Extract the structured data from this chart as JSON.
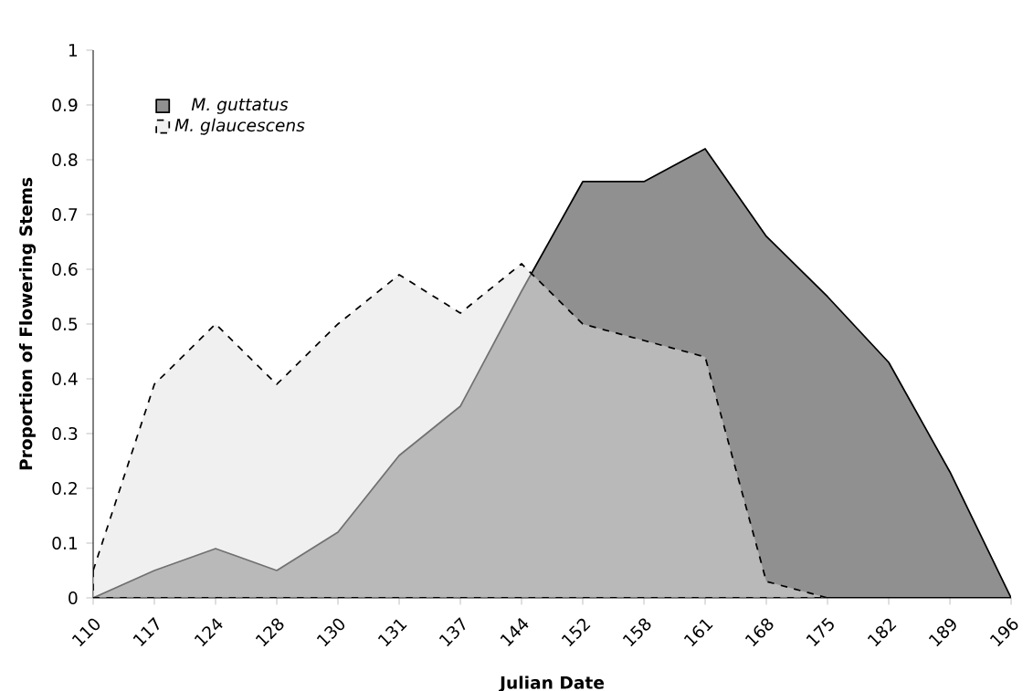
{
  "chart_data": {
    "type": "area",
    "xlabel": "Julian Date",
    "ylabel": "Proportion of Flowering Stems",
    "categories": [
      "110",
      "117",
      "124",
      "128",
      "130",
      "131",
      "137",
      "144",
      "152",
      "158",
      "161",
      "168",
      "175",
      "182",
      "189",
      "196"
    ],
    "series": [
      {
        "name": "M. guttatus",
        "color": "#909090",
        "line_style": "solid",
        "values": [
          0,
          0.05,
          0.09,
          0.05,
          0.12,
          0.26,
          0.35,
          0.56,
          0.76,
          0.76,
          0.82,
          0.66,
          0.55,
          0.43,
          0.23,
          0
        ]
      },
      {
        "name": "M. glaucescens",
        "color": "#f0f0f0",
        "line_style": "dashed",
        "values": [
          0.05,
          0.39,
          0.5,
          0.39,
          0.5,
          0.59,
          0.52,
          0.61,
          0.5,
          0.47,
          0.44,
          0.03,
          0,
          0,
          0,
          0
        ]
      }
    ],
    "ylim": [
      0,
      1
    ],
    "yticks": [
      0,
      0.1,
      0.2,
      0.3,
      0.4,
      0.5,
      0.6,
      0.7,
      0.8,
      0.9,
      1
    ],
    "grid": false,
    "legend": "top left"
  }
}
